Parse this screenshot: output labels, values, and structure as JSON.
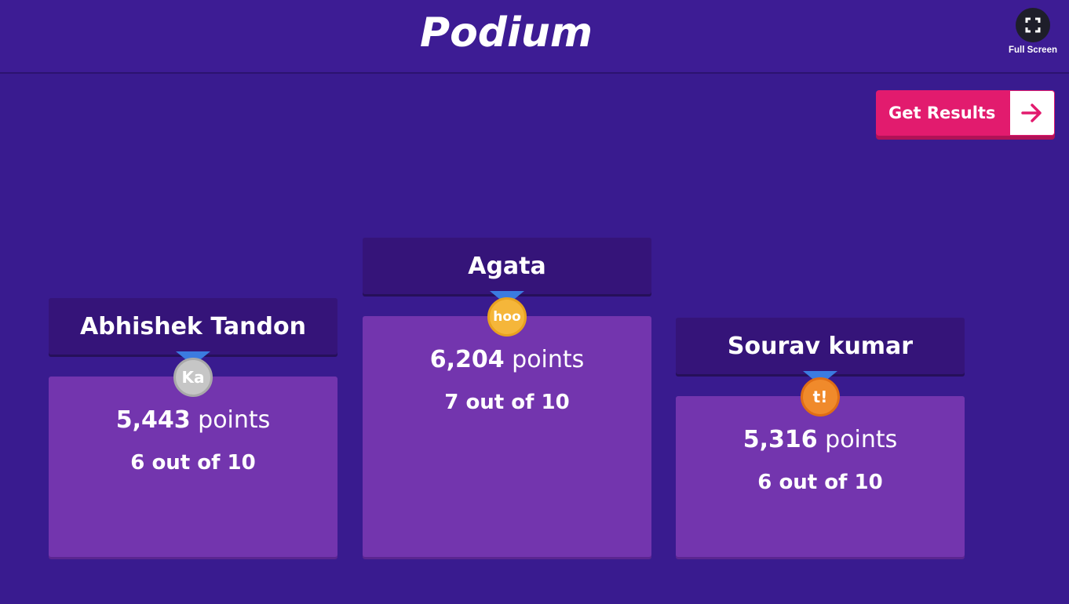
{
  "header": {
    "title": "Podium",
    "fullscreen_label": "Full Screen"
  },
  "actions": {
    "get_results_label": "Get Results"
  },
  "podium": [
    {
      "place": "second",
      "name": "Abhishek Tandon",
      "score": "5,443",
      "points_unit": "points",
      "correct": "6 out of 10",
      "medal": {
        "type": "silver",
        "text": "Ka",
        "color": "#c6c6c6"
      }
    },
    {
      "place": "first",
      "name": "Agata",
      "score": "6,204",
      "points_unit": "points",
      "correct": "7 out of 10",
      "medal": {
        "type": "gold",
        "text": "hoo",
        "color": "#f5b63a"
      }
    },
    {
      "place": "third",
      "name": "Sourav kumar",
      "score": "5,316",
      "points_unit": "points",
      "correct": "6 out of 10",
      "medal": {
        "type": "bronze",
        "text": "t!",
        "color": "#f08a2b"
      }
    }
  ],
  "colors": {
    "background": "#391b8f",
    "accent": "#e21b6e",
    "name_box": "#351479",
    "score_box": "#7335ae",
    "medal_ribbon": "#3b7be0"
  }
}
